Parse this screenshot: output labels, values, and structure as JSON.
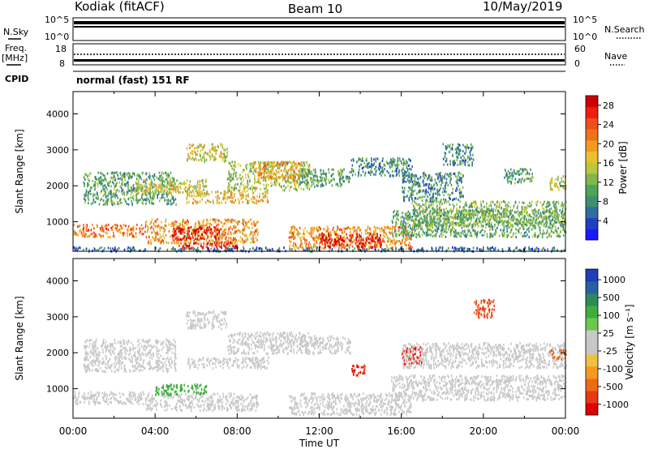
{
  "header": {
    "station": "Kodiak (fitACF)",
    "beam": "Beam 10",
    "date": "10/May/2019"
  },
  "top_panels": {
    "nsky_label": "N.Sky",
    "nsearch_label": "N.Search",
    "exp_hi": "10^5",
    "exp_lo": "10^0",
    "freq_label_1": "Freq.",
    "freq_label_2": "[MHz]",
    "freq_ticks": [
      "18",
      "8"
    ],
    "nave_label": "Nave",
    "nave_ticks": [
      "60",
      "0"
    ],
    "cpid_label": "CPID",
    "cpid_text": "normal (fast) 151 RF"
  },
  "chart_data": [
    {
      "type": "heatmap",
      "name": "power-panel",
      "xlabel": "",
      "ylabel": "Slant Range [km]",
      "ylim": [
        180,
        4620
      ],
      "yticks": [
        "1000",
        "2000",
        "3000",
        "4000"
      ],
      "xlim": [
        0,
        24
      ],
      "colorbar": {
        "label": "Power [dB]",
        "ticks": [
          "4",
          "8",
          "12",
          "16",
          "20",
          "24",
          "28"
        ],
        "colors": [
          "#1a1aff",
          "#2040c0",
          "#2e6e9e",
          "#3f8f6e",
          "#4fa35a",
          "#80b84a",
          "#b7c83c",
          "#e9c12c",
          "#f29a1f",
          "#f37119",
          "#f04e1a",
          "#ee1d12",
          "#d10000"
        ]
      },
      "bands": [
        {
          "t0": 0.0,
          "t1": 24.0,
          "r0": 200,
          "r1": 320,
          "v": 6
        },
        {
          "t0": 0.0,
          "t1": 3.5,
          "r0": 600,
          "r1": 950,
          "v": 22
        },
        {
          "t0": 3.5,
          "t1": 9.0,
          "r0": 420,
          "r1": 1100,
          "v": 20
        },
        {
          "t0": 4.8,
          "t1": 7.2,
          "r0": 520,
          "r1": 900,
          "v": 28
        },
        {
          "t0": 5.0,
          "t1": 8.0,
          "r0": 280,
          "r1": 460,
          "v": 26
        },
        {
          "t0": 10.5,
          "t1": 16.5,
          "r0": 280,
          "r1": 900,
          "v": 20
        },
        {
          "t0": 12.0,
          "t1": 15.0,
          "r0": 300,
          "r1": 700,
          "v": 28
        },
        {
          "t0": 15.5,
          "t1": 24.0,
          "r0": 600,
          "r1": 1350,
          "v": 10
        },
        {
          "t0": 16.5,
          "t1": 24.0,
          "r0": 900,
          "r1": 1600,
          "v": 12
        },
        {
          "t0": 0.5,
          "t1": 5.0,
          "r0": 1500,
          "r1": 2400,
          "v": 10
        },
        {
          "t0": 3.0,
          "t1": 6.5,
          "r0": 1800,
          "r1": 2200,
          "v": 16
        },
        {
          "t0": 5.5,
          "t1": 9.5,
          "r0": 1550,
          "r1": 1900,
          "v": 18
        },
        {
          "t0": 7.5,
          "t1": 11.5,
          "r0": 1900,
          "r1": 2700,
          "v": 14
        },
        {
          "t0": 9.0,
          "t1": 11.0,
          "r0": 2200,
          "r1": 2700,
          "v": 20
        },
        {
          "t0": 11.0,
          "t1": 13.5,
          "r0": 2000,
          "r1": 2500,
          "v": 10
        },
        {
          "t0": 5.5,
          "t1": 7.5,
          "r0": 2700,
          "r1": 3200,
          "v": 16
        },
        {
          "t0": 13.5,
          "t1": 16.5,
          "r0": 2300,
          "r1": 2800,
          "v": 8
        },
        {
          "t0": 16.0,
          "t1": 19.0,
          "r0": 1600,
          "r1": 2400,
          "v": 8
        },
        {
          "t0": 18.0,
          "t1": 19.5,
          "r0": 2600,
          "r1": 3200,
          "v": 8
        },
        {
          "t0": 21.0,
          "t1": 22.5,
          "r0": 2100,
          "r1": 2500,
          "v": 10
        },
        {
          "t0": 23.2,
          "t1": 24.0,
          "r0": 1900,
          "r1": 2300,
          "v": 16
        }
      ]
    },
    {
      "type": "heatmap",
      "name": "velocity-panel",
      "xlabel": "Time UT",
      "ylabel": "Slant Range [km]",
      "ylim": [
        180,
        4620
      ],
      "yticks": [
        "1000",
        "2000",
        "3000",
        "4000"
      ],
      "xticks": [
        "00:00",
        "04:00",
        "08:00",
        "12:00",
        "16:00",
        "20:00",
        "00:00"
      ],
      "xlim": [
        0,
        24
      ],
      "colorbar": {
        "label": "Velocity [m s⁻¹]",
        "ticks": [
          "1000",
          "500",
          "100",
          "25",
          "-25",
          "-100",
          "-500",
          "-1000"
        ],
        "colors": [
          "#1f3fb4",
          "#2860a8",
          "#2e8b57",
          "#3fae3f",
          "#6cc84c",
          "#c8c8c8",
          "#c8c8c8",
          "#f0c040",
          "#f39a1e",
          "#ef6a14",
          "#e83a10",
          "#e00000"
        ]
      },
      "bands": [
        {
          "t0": 0.0,
          "t1": 3.5,
          "r0": 600,
          "r1": 950,
          "v": 0
        },
        {
          "t0": 3.5,
          "t1": 9.0,
          "r0": 420,
          "r1": 900,
          "v": 0
        },
        {
          "t0": 4.0,
          "t1": 6.5,
          "r0": 850,
          "r1": 1150,
          "v": 150
        },
        {
          "t0": 10.5,
          "t1": 16.5,
          "r0": 300,
          "r1": 900,
          "v": 0
        },
        {
          "t0": 15.5,
          "t1": 24.0,
          "r0": 700,
          "r1": 1400,
          "v": 0
        },
        {
          "t0": 0.5,
          "t1": 5.0,
          "r0": 1500,
          "r1": 2400,
          "v": 0
        },
        {
          "t0": 5.5,
          "t1": 9.5,
          "r0": 1600,
          "r1": 1900,
          "v": 0
        },
        {
          "t0": 7.5,
          "t1": 11.5,
          "r0": 2000,
          "r1": 2600,
          "v": 0
        },
        {
          "t0": 11.0,
          "t1": 13.5,
          "r0": 2000,
          "r1": 2500,
          "v": 0
        },
        {
          "t0": 13.5,
          "t1": 14.2,
          "r0": 1400,
          "r1": 1700,
          "v": -500
        },
        {
          "t0": 16.0,
          "t1": 17.0,
          "r0": 1700,
          "r1": 2200,
          "v": -500
        },
        {
          "t0": 5.5,
          "t1": 7.5,
          "r0": 2700,
          "r1": 3200,
          "v": 0
        },
        {
          "t0": 16.0,
          "t1": 24.0,
          "r0": 1600,
          "r1": 2300,
          "v": 0
        },
        {
          "t0": 19.5,
          "t1": 20.5,
          "r0": 3000,
          "r1": 3500,
          "v": -300
        },
        {
          "t0": 23.2,
          "t1": 24.0,
          "r0": 1850,
          "r1": 2100,
          "v": -200
        }
      ]
    }
  ]
}
